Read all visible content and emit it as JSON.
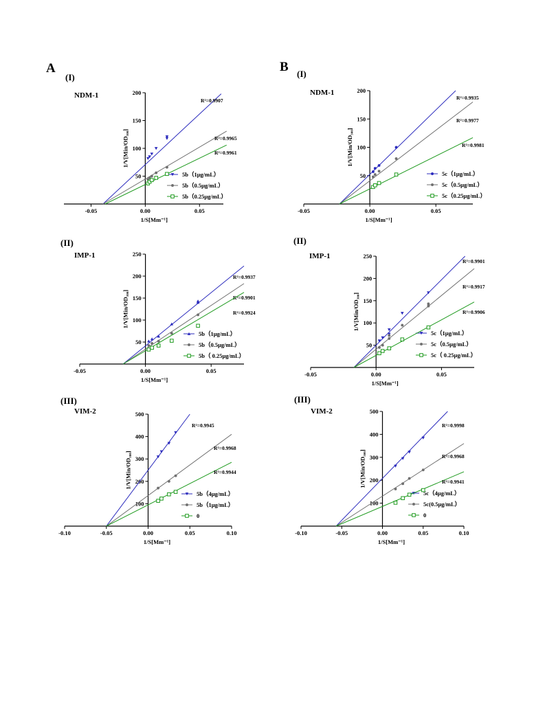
{
  "figure": {
    "letters": [
      "A",
      "B"
    ]
  },
  "chart_data": [
    {
      "type": "line",
      "column": "A",
      "title": "NDM-1",
      "panel": "(I)",
      "xlabel": "1/S[Mm⁻¹]",
      "ylabel": "1/V[Min/OD₃₀₀]",
      "xlim": [
        -0.075,
        0.072
      ],
      "ylim": [
        0,
        200
      ],
      "xticks": [
        -0.05,
        0,
        0.05
      ],
      "xtick_labels": [
        "-0.05",
        "0.00",
        "0.05"
      ],
      "yticks": [
        50,
        100,
        150,
        200
      ],
      "ytick_labels": [
        "50",
        "100",
        "150",
        "200"
      ],
      "series": [
        {
          "name": "5b（1μg/mL）",
          "color": "#2b2bbd",
          "marker": "triangle-down",
          "fit": [
            -0.039,
            0,
            0.07,
            198
          ],
          "x": [
            0.0025,
            0.004,
            0.006,
            0.01,
            0.02,
            0.02
          ],
          "y": [
            82,
            85,
            90,
            100,
            118,
            121
          ],
          "r2": "R²=0.9907"
        },
        {
          "name": "5b（0.5μg/mL）",
          "color": "#707070",
          "marker": "circle",
          "fit": [
            -0.039,
            0,
            0.075,
            131
          ],
          "x": [
            0.0025,
            0.004,
            0.006,
            0.01,
            0.02
          ],
          "y": [
            44,
            47,
            50,
            56,
            66
          ],
          "r2": "R²=0.9965"
        },
        {
          "name": "5b（0.25μg/mL）",
          "color": "#1e9a1e",
          "marker": "square-open",
          "fit": [
            -0.037,
            0,
            0.075,
            106
          ],
          "x": [
            0.0025,
            0.004,
            0.006,
            0.01,
            0.02
          ],
          "y": [
            37,
            40,
            43,
            47,
            54
          ],
          "r2": "R²=0.9961"
        }
      ]
    },
    {
      "type": "line",
      "column": "B",
      "title": "NDM-1",
      "panel": "(I)",
      "xlabel": "1/S[Mm⁻¹]",
      "ylabel": "1/V[Min/OD₃₀₀]",
      "xlim": [
        -0.05,
        0.078
      ],
      "ylim": [
        0,
        200
      ],
      "xticks": [
        -0.05,
        0,
        0.05
      ],
      "xtick_labels": [
        "-0.05",
        "0.00",
        "0.05"
      ],
      "yticks": [
        50,
        100,
        150,
        200
      ],
      "ytick_labels": [
        "50",
        "100",
        "150",
        "200"
      ],
      "series": [
        {
          "name": "5c（1μg/mL）",
          "color": "#2b2bbd",
          "marker": "circle",
          "fit": [
            -0.023,
            0,
            0.065,
            200
          ],
          "x": [
            0.0025,
            0.004,
            0.007,
            0.02
          ],
          "y": [
            57,
            63,
            68,
            100
          ],
          "r2": "R²=0.9935"
        },
        {
          "name": "5c（0.5μg/mL）",
          "color": "#707070",
          "marker": "circle",
          "fit": [
            -0.023,
            0,
            0.078,
            180
          ],
          "x": [
            0.0025,
            0.004,
            0.007,
            0.02
          ],
          "y": [
            48,
            52,
            58,
            80
          ],
          "r2": "R²=0.9977"
        },
        {
          "name": "5c（0.25μg/mL）",
          "color": "#1e9a1e",
          "marker": "square-open",
          "fit": [
            -0.023,
            0,
            0.078,
            117
          ],
          "x": [
            0.0025,
            0.004,
            0.007,
            0.02
          ],
          "y": [
            30,
            33,
            37,
            52
          ],
          "r2": "R²=0.9981"
        }
      ]
    },
    {
      "type": "line",
      "column": "A",
      "title": "IMP-1",
      "panel": "(II)",
      "xlabel": "1/S[Mm⁻¹]",
      "ylabel": "1/V[Min/OD₃₀₀]",
      "xlim": [
        -0.05,
        0.075
      ],
      "ylim": [
        0,
        250
      ],
      "xticks": [
        -0.05,
        0,
        0.05
      ],
      "xtick_labels": [
        "-0.05",
        "0.00",
        "0.05"
      ],
      "yticks": [
        50,
        100,
        150,
        200,
        250
      ],
      "ytick_labels": [
        "50",
        "100",
        "150",
        "200",
        "250"
      ],
      "series": [
        {
          "name": "5b（1μg/mL）",
          "color": "#2b2bbd",
          "marker": "triangle-up",
          "fit": [
            -0.017,
            0,
            0.075,
            223
          ],
          "x": [
            0.0025,
            0.005,
            0.01,
            0.02,
            0.04,
            0.04
          ],
          "y": [
            52,
            57,
            63,
            91,
            140,
            143
          ],
          "r2": "R²=0.9937"
        },
        {
          "name": "5b（0.5μg/mL）",
          "color": "#707070",
          "marker": "circle",
          "fit": [
            -0.017,
            0,
            0.075,
            183
          ],
          "x": [
            0.0025,
            0.005,
            0.01,
            0.02,
            0.04
          ],
          "y": [
            42,
            47,
            52,
            70,
            112
          ],
          "r2": "R²=0.9901"
        },
        {
          "name": "5b（ 0.25μg/mL）",
          "color": "#1e9a1e",
          "marker": "square-open",
          "fit": [
            -0.017,
            0,
            0.075,
            163
          ],
          "x": [
            0.0025,
            0.005,
            0.01,
            0.02,
            0.04
          ],
          "y": [
            33,
            37,
            42,
            53,
            87
          ],
          "r2": "R²=0.9924"
        }
      ]
    },
    {
      "type": "line",
      "column": "B",
      "title": "IMP-1",
      "panel": "(II)",
      "xlabel": "1/S[Mm⁻¹]",
      "ylabel": "1/V[Min/OD₃₀₀]",
      "xlim": [
        -0.05,
        0.075
      ],
      "ylim": [
        0,
        250
      ],
      "xticks": [
        -0.05,
        0,
        0.05
      ],
      "xtick_labels": [
        "-0.05",
        "0.00",
        "0.05"
      ],
      "yticks": [
        50,
        100,
        150,
        200,
        250
      ],
      "ytick_labels": [
        "50",
        "100",
        "150",
        "200",
        "250"
      ],
      "series": [
        {
          "name": "5c（1μg/mL）",
          "color": "#2b2bbd",
          "marker": "triangle-down",
          "fit": [
            -0.017,
            0,
            0.068,
            250
          ],
          "x": [
            0.0025,
            0.005,
            0.01,
            0.01,
            0.02,
            0.04
          ],
          "y": [
            60,
            67,
            75,
            85,
            122,
            168
          ],
          "r2": "R²=0.9901"
        },
        {
          "name": "5c（0.5μg/mL）",
          "color": "#707070",
          "marker": "circle",
          "fit": [
            -0.017,
            0,
            0.075,
            222
          ],
          "x": [
            0.0025,
            0.005,
            0.01,
            0.01,
            0.02,
            0.04,
            0.04
          ],
          "y": [
            45,
            50,
            65,
            72,
            95,
            138,
            143
          ],
          "r2": "R²=0.9917"
        },
        {
          "name": "5c（ 0.25μg/mL）",
          "color": "#1e9a1e",
          "marker": "square-open",
          "fit": [
            -0.017,
            0,
            0.075,
            147
          ],
          "x": [
            0.0025,
            0.005,
            0.01,
            0.02,
            0.04
          ],
          "y": [
            32,
            37,
            43,
            63,
            90
          ],
          "r2": "R²=0.9906"
        }
      ]
    },
    {
      "type": "line",
      "column": "A",
      "title": "VIM-2",
      "panel": "(III)",
      "xlabel": "1/S[Mm⁻¹]",
      "ylabel": "1/V[Min/OD₃₀₀]",
      "xlim": [
        -0.1,
        0.1
      ],
      "ylim": [
        0,
        500
      ],
      "xticks": [
        -0.1,
        -0.05,
        0,
        0.05,
        0.1
      ],
      "xtick_labels": [
        "-0.10",
        "-0.05",
        "0.00",
        "0.05",
        "0.10"
      ],
      "yticks": [
        100,
        200,
        300,
        400,
        500
      ],
      "ytick_labels": [
        "100",
        "200",
        "300",
        "400",
        "500"
      ],
      "series": [
        {
          "name": "5b（4μg/mL）",
          "color": "#2b2bbd",
          "marker": "triangle-down",
          "fit": [
            -0.05,
            0,
            0.05,
            500
          ],
          "x": [
            0.012,
            0.016,
            0.025,
            0.033
          ],
          "y": [
            310,
            333,
            370,
            418
          ],
          "r2": "R²=0.9945"
        },
        {
          "name": "5b（1μg/mL）",
          "color": "#707070",
          "marker": "circle",
          "fit": [
            -0.05,
            0,
            0.1,
            410
          ],
          "x": [
            0.012,
            0.025,
            0.033
          ],
          "y": [
            170,
            200,
            225
          ],
          "r2": "R²=0.9968"
        },
        {
          "name": "0",
          "color": "#1e9a1e",
          "marker": "square-open",
          "fit": [
            -0.05,
            0,
            0.1,
            285
          ],
          "x": [
            0.012,
            0.016,
            0.025,
            0.033
          ],
          "y": [
            113,
            123,
            142,
            153
          ],
          "r2": "R²=0.9944"
        }
      ]
    },
    {
      "type": "line",
      "column": "B",
      "title": "VIM-2",
      "panel": "(III)",
      "xlabel": "1/S[Mm⁻¹]",
      "ylabel": "1/V[Min/OD₃₀₀]",
      "xlim": [
        -0.1,
        0.1
      ],
      "ylim": [
        0,
        500
      ],
      "xticks": [
        -0.1,
        -0.05,
        0,
        0.05,
        0.1
      ],
      "xtick_labels": [
        "-0.10",
        "-0.05",
        "0.00",
        "0.05",
        "0.10"
      ],
      "yticks": [
        100,
        200,
        300,
        400,
        500
      ],
      "ytick_labels": [
        "100",
        "200",
        "300",
        "400",
        "500"
      ],
      "series": [
        {
          "name": "5c（4μg/mL）",
          "color": "#2b2bbd",
          "marker": "triangle-down",
          "fit": [
            -0.057,
            0,
            0.08,
            500
          ],
          "x": [
            0.016,
            0.025,
            0.033,
            0.05
          ],
          "y": [
            262,
            295,
            323,
            385
          ],
          "r2": "R²=0.9998"
        },
        {
          "name": "5c(0.5μg/mL）",
          "color": "#707070",
          "marker": "circle",
          "fit": [
            -0.057,
            0,
            0.1,
            360
          ],
          "x": [
            0.016,
            0.025,
            0.033,
            0.05
          ],
          "y": [
            162,
            185,
            208,
            245
          ],
          "r2": "R²=0.9968"
        },
        {
          "name": "0",
          "color": "#1e9a1e",
          "marker": "square-open",
          "fit": [
            -0.057,
            0,
            0.1,
            237
          ],
          "x": [
            0.016,
            0.025,
            0.033,
            0.05
          ],
          "y": [
            102,
            122,
            137,
            157
          ],
          "r2": "R²=0.9941"
        }
      ]
    }
  ]
}
